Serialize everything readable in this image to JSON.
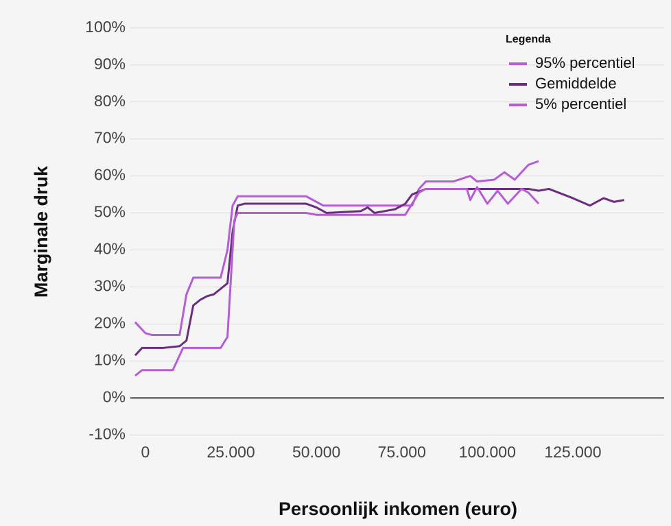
{
  "chart_data": {
    "type": "line",
    "x_label": "Persoonlijk inkomen (euro)",
    "y_label": "Marginale druk",
    "legend_title": "Legenda",
    "legend_position": "top-right",
    "grid": true,
    "xlim": [
      -4400,
      151700
    ],
    "ylim": [
      -12,
      102
    ],
    "xticks": [
      0,
      {
        "value": 25000,
        "label": "25.000"
      },
      {
        "value": 50000,
        "label": "50.000"
      },
      {
        "value": 75000,
        "label": "75.000"
      },
      {
        "value": 100000,
        "label": "100.000"
      },
      {
        "value": 125000,
        "label": "125.000"
      }
    ],
    "yticks": [
      {
        "value": -10,
        "label": "-10%"
      },
      {
        "value": 0,
        "label": "0%"
      },
      {
        "value": 10,
        "label": "10%"
      },
      {
        "value": 20,
        "label": "20%"
      },
      {
        "value": 30,
        "label": "30%"
      },
      {
        "value": 40,
        "label": "40%"
      },
      {
        "value": 50,
        "label": "50%"
      },
      {
        "value": 60,
        "label": "60%"
      },
      {
        "value": 70,
        "label": "70%"
      },
      {
        "value": 80,
        "label": "80%"
      },
      {
        "value": 90,
        "label": "90%"
      },
      {
        "value": 100,
        "label": "100%"
      }
    ],
    "series": [
      {
        "name": "95% percentiel",
        "color": "#b55ed3",
        "x": [
          -3000,
          0,
          2000,
          10000,
          12000,
          14000,
          22000,
          24000,
          25500,
          27000,
          47000,
          52000,
          78000,
          80000,
          82000,
          90000,
          95000,
          97000,
          102000,
          105000,
          108000,
          112000,
          115000
        ],
        "values": [
          20.5,
          17.5,
          17,
          17,
          28,
          32.5,
          32.5,
          40,
          52,
          54.5,
          54.5,
          52,
          52,
          56.5,
          58.5,
          58.5,
          60,
          58.5,
          59,
          61,
          59,
          63,
          64
        ]
      },
      {
        "name": "Gemiddelde",
        "color": "#6b2d7e",
        "x": [
          -3000,
          -1000,
          5000,
          10000,
          12000,
          14000,
          16000,
          18000,
          20000,
          22000,
          24000,
          25500,
          27000,
          29000,
          47000,
          50000,
          53000,
          63000,
          65000,
          67000,
          70000,
          73000,
          76000,
          78000,
          82000,
          100000,
          112000,
          115000,
          118000,
          125000,
          130000,
          134000,
          137000,
          140000
        ],
        "values": [
          11.5,
          13.5,
          13.5,
          14,
          15.5,
          25,
          26.5,
          27.5,
          28,
          29.5,
          31,
          45,
          52,
          52.5,
          52.5,
          51.5,
          50,
          50.5,
          51.5,
          50,
          50.5,
          51,
          52.5,
          55,
          56.5,
          56.5,
          56.5,
          56,
          56.5,
          54,
          52,
          54,
          53,
          53.5
        ]
      },
      {
        "name": "5% percentiel",
        "color": "#b55ed3",
        "x": [
          -3000,
          -1000,
          8000,
          11000,
          22000,
          24000,
          26000,
          27000,
          47000,
          50000,
          76000,
          78000,
          80000,
          82000,
          94000,
          95000,
          97000,
          100000,
          103000,
          106000,
          110000,
          112000,
          115000
        ],
        "values": [
          6,
          7.5,
          7.5,
          13.5,
          13.5,
          16.5,
          48,
          50,
          50,
          49.5,
          49.5,
          52.5,
          55.5,
          56.5,
          56.5,
          53.5,
          57,
          52.5,
          56,
          52.5,
          56.5,
          55.5,
          52.5
        ]
      }
    ]
  }
}
